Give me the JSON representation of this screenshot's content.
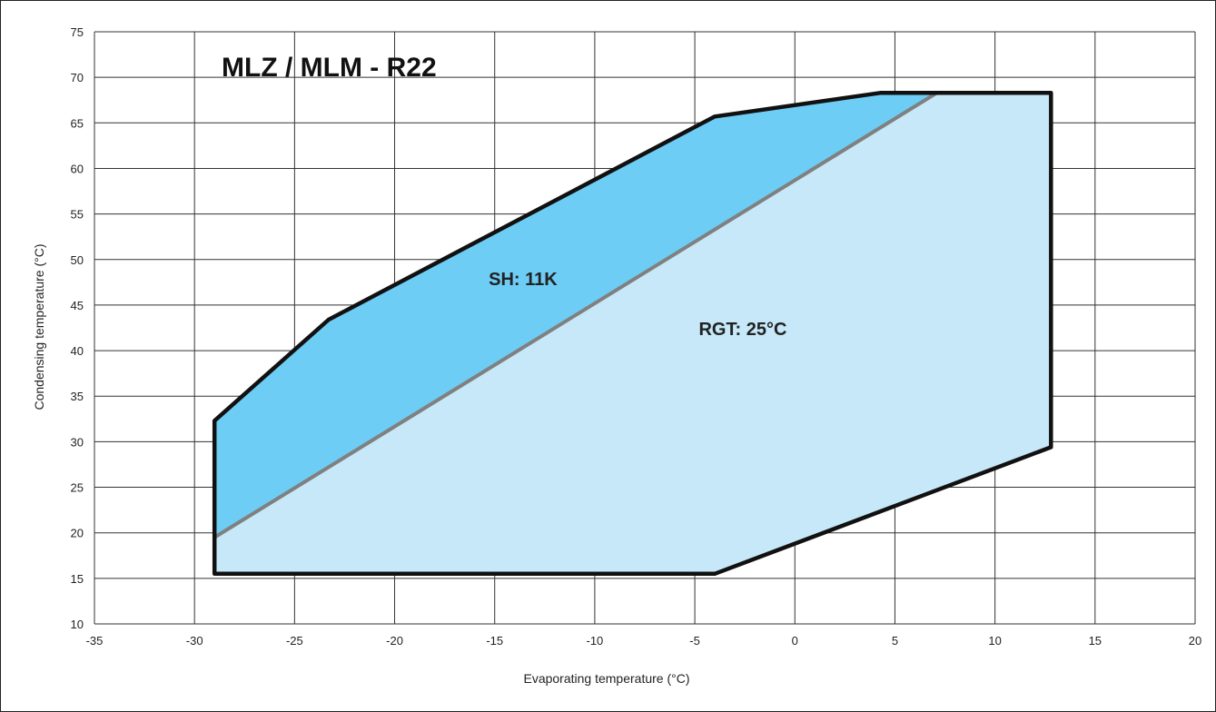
{
  "chart_data": {
    "type": "area",
    "title": "MLZ / MLM  -  R22",
    "xlabel": "Evaporating temperature (°C)",
    "ylabel": "Condensing temperature (°C)",
    "xlim": [
      -35,
      20
    ],
    "ylim": [
      10,
      75
    ],
    "xticks": [
      -35,
      -30,
      -25,
      -20,
      -15,
      -10,
      -5,
      0,
      5,
      10,
      15,
      20
    ],
    "yticks": [
      10,
      15,
      20,
      25,
      30,
      35,
      40,
      45,
      50,
      55,
      60,
      65,
      70,
      75
    ],
    "grid": true,
    "series": [
      {
        "name": "SH: 11K",
        "points": [
          [
            -29,
            19.5
          ],
          [
            -29,
            32.3
          ],
          [
            -23.3,
            43.4
          ],
          [
            -4,
            65.7
          ],
          [
            4.3,
            68.3
          ],
          [
            7.1,
            68.3
          ]
        ],
        "color": "#6dcdf5"
      },
      {
        "name": "RGT: 25°C",
        "points": [
          [
            -29,
            19.5
          ],
          [
            7.1,
            68.3
          ],
          [
            12.8,
            68.3
          ],
          [
            12.8,
            29.4
          ],
          [
            -4,
            15.5
          ],
          [
            -29,
            15.5
          ]
        ],
        "color": "#c6e8f8"
      }
    ],
    "envelope": [
      [
        -29,
        15.5
      ],
      [
        -29,
        32.3
      ],
      [
        -23.3,
        43.4
      ],
      [
        -4,
        65.7
      ],
      [
        4.3,
        68.3
      ],
      [
        12.8,
        68.3
      ],
      [
        12.8,
        29.4
      ],
      [
        -4,
        15.5
      ]
    ],
    "divider_line": [
      [
        -29,
        19.5
      ],
      [
        7.1,
        68.3
      ]
    ],
    "annotations": [
      {
        "text": "SH: 11K",
        "x": -15.3,
        "y": 47.2
      },
      {
        "text": "RGT: 25°C",
        "x": -4.8,
        "y": 41.7
      }
    ],
    "colors": {
      "envelope_stroke": "#111111",
      "divider": "#808080",
      "grid": "#333333"
    }
  }
}
